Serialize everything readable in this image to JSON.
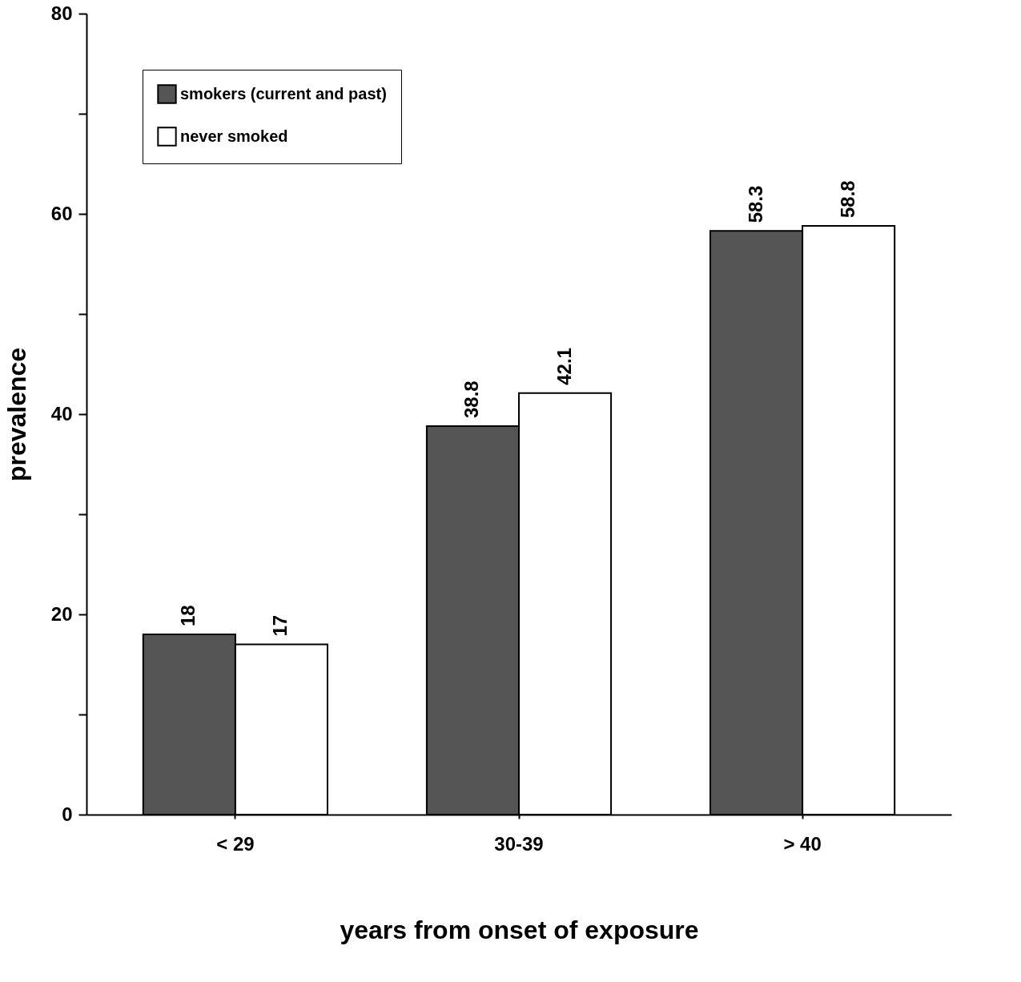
{
  "chart_data": {
    "type": "bar",
    "xlabel": "years from onset of exposure",
    "ylabel": "prevalence",
    "categories": [
      "< 29",
      "30-39",
      "> 40"
    ],
    "series": [
      {
        "name": "smokers (current and past)",
        "color": "#555555",
        "values": [
          18,
          38.8,
          58.3
        ]
      },
      {
        "name": "never smoked",
        "color": "#ffffff",
        "values": [
          17,
          42.1,
          58.8
        ]
      }
    ],
    "ylim": [
      0,
      80
    ],
    "yticks": [
      0,
      {
        "value": 10,
        "label": null
      },
      20,
      {
        "value": 30,
        "label": null
      },
      40,
      {
        "value": 50,
        "label": null
      },
      60,
      {
        "value": 70,
        "label": null
      },
      80
    ],
    "data_labels": true,
    "grid": false,
    "legend": "top left"
  }
}
